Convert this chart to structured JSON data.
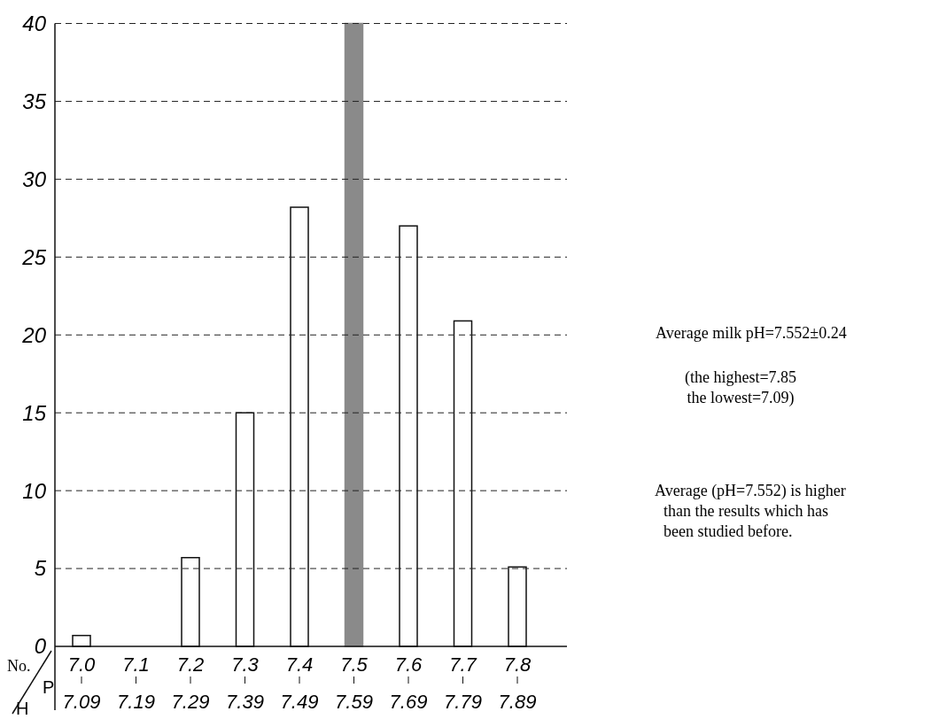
{
  "chart_data": {
    "type": "bar",
    "xlabel": "PH",
    "ylabel": "No.",
    "categories": [
      "7.0\n7.09",
      "7.1\n7.19",
      "7.2\n7.29",
      "7.3\n7.39",
      "7.4\n7.49",
      "7.5\n7.59",
      "7.6\n7.69",
      "7.7\n7.79",
      "7.8\n7.89"
    ],
    "values": [
      0.7,
      0,
      5.7,
      15,
      28.2,
      40,
      27,
      20.9,
      5.1
    ],
    "colors": [
      "#ffffff",
      "#ffffff",
      "#ffffff",
      "#ffffff",
      "#ffffff",
      "#8a8a8a",
      "#ffffff",
      "#ffffff",
      "#ffffff"
    ],
    "ylim": [
      0,
      40
    ],
    "yticks": [
      0,
      5,
      10,
      15,
      20,
      25,
      30,
      35,
      40
    ],
    "grid": "y",
    "annotations": [
      "Average milk pH=7.552±0.24",
      "(the highest=7.85\nthe lowest=7.09)",
      "Average (pH=7.552) is higher\nthan the results which has\nbeen studied before."
    ]
  }
}
